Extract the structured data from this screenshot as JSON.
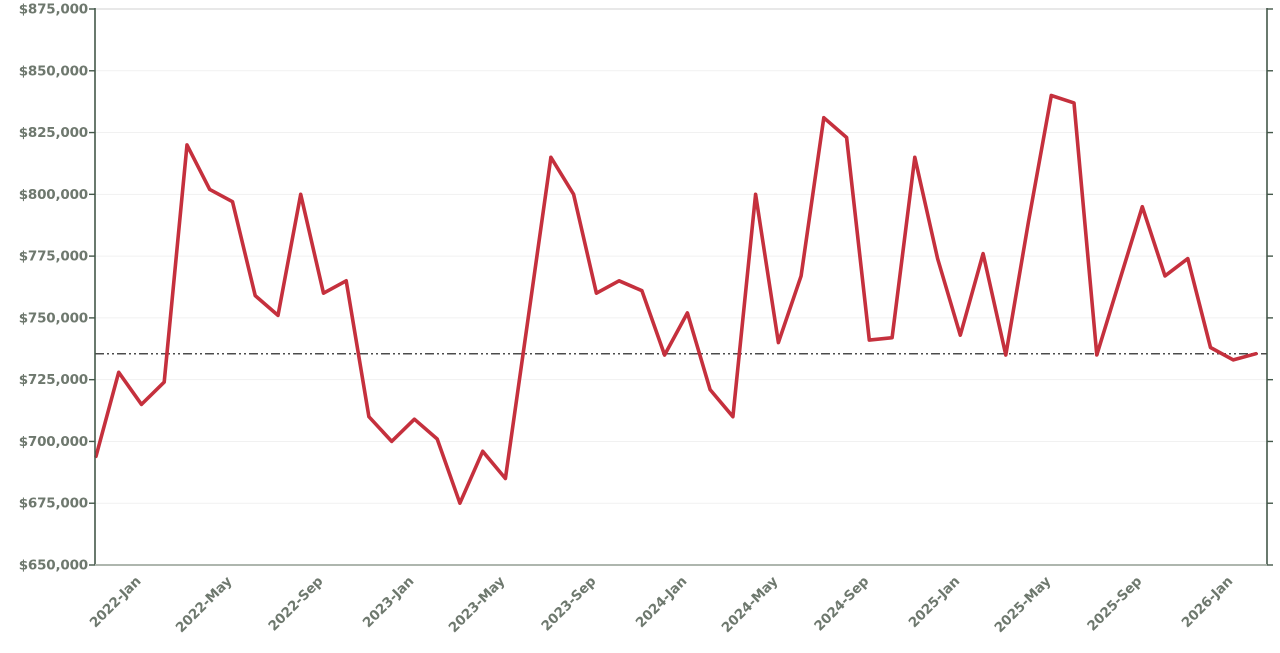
{
  "chart_data": {
    "type": "line",
    "title": "",
    "xlabel": "",
    "ylabel": "",
    "grid": true,
    "legend": false,
    "x": [
      "2021-Nov",
      "2021-Dec",
      "2022-Jan",
      "2022-Feb",
      "2022-Mar",
      "2022-Apr",
      "2022-May",
      "2022-Jun",
      "2022-Jul",
      "2022-Aug",
      "2022-Sep",
      "2022-Oct",
      "2022-Nov",
      "2022-Dec",
      "2023-Jan",
      "2023-Feb",
      "2023-Mar",
      "2023-Apr",
      "2023-May",
      "2023-Jun",
      "2023-Jul",
      "2023-Aug",
      "2023-Sep",
      "2023-Oct",
      "2023-Nov",
      "2023-Dec",
      "2024-Jan",
      "2024-Feb",
      "2024-Mar",
      "2024-Apr",
      "2024-May",
      "2024-Jun",
      "2024-Jul",
      "2024-Aug",
      "2024-Sep",
      "2024-Oct",
      "2024-Nov",
      "2024-Dec",
      "2025-Jan",
      "2025-Feb",
      "2025-Mar",
      "2025-Apr",
      "2025-May",
      "2025-Jun",
      "2025-Jul",
      "2025-Aug",
      "2025-Sep",
      "2025-Oct",
      "2025-Nov",
      "2025-Dec",
      "2026-Jan",
      "2026-Feb"
    ],
    "series": [
      {
        "name": "price",
        "color": "#c5303d",
        "values": [
          694000,
          728000,
          715000,
          724000,
          820000,
          802000,
          797000,
          759000,
          751000,
          800000,
          760000,
          765000,
          710000,
          700000,
          709000,
          701000,
          675000,
          696000,
          685000,
          750000,
          815000,
          800000,
          760000,
          765000,
          761000,
          735000,
          752000,
          721000,
          710000,
          800000,
          740000,
          767000,
          831000,
          823000,
          741000,
          742000,
          815000,
          774000,
          743000,
          776000,
          735000,
          789000,
          840000,
          837000,
          735000,
          765000,
          795000,
          767000,
          774000,
          738000,
          733000,
          735500
        ]
      }
    ],
    "reference_line": {
      "value": 735500,
      "style": "dash-dot-dot",
      "color": "#4c4c4c"
    },
    "y_axis": {
      "min": 650000,
      "max": 875000,
      "tick_interval": 25000,
      "tick_labels_top_to_bottom": [
        "$875,000",
        "$850,000",
        "$825,000",
        "$800,000",
        "$775,000",
        "$750,000",
        "$725,000",
        "$700,000",
        "$675,000",
        "$650,000"
      ]
    },
    "x_axis": {
      "tick_labels": [
        "2022-Jan",
        "2022-May",
        "2022-Sep",
        "2023-Jan",
        "2023-May",
        "2023-Sep",
        "2024-Jan",
        "2024-May",
        "2024-Sep",
        "2025-Jan",
        "2025-May",
        "2025-Sep",
        "2026-Jan"
      ],
      "tick_point_indices": [
        2,
        6,
        10,
        14,
        18,
        22,
        26,
        30,
        34,
        38,
        42,
        46,
        50
      ],
      "label_rotation_deg": -45
    },
    "colors": {
      "line": "#c5303d",
      "grid": "#f1f1f1",
      "grid_top": "#d9d9d9",
      "axis_spine": "#44584a",
      "axis_bottom": "#aeb6ae",
      "tick_label": "#6e786e",
      "reference": "#4c4c4c",
      "background": "#ffffff"
    }
  }
}
